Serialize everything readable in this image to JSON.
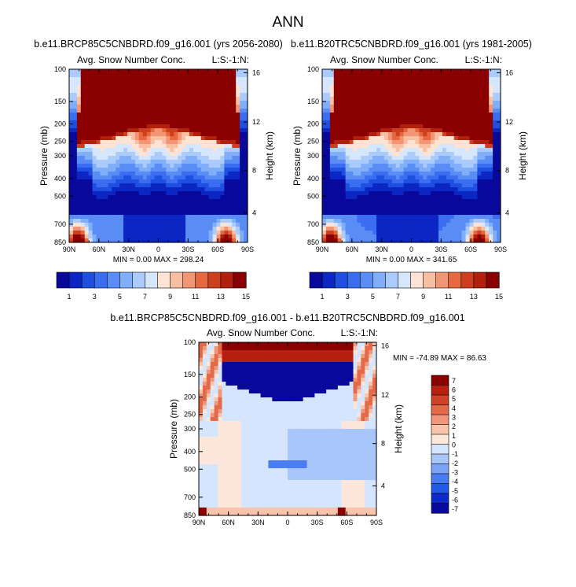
{
  "title": "ANN",
  "colors": {
    "abs": [
      "#08089a",
      "#0c26c4",
      "#1e4fe0",
      "#3a6df0",
      "#5a8cf5",
      "#80aef8",
      "#aacbfb",
      "#d6e6fd",
      "#fde3d4",
      "#f9bfa3",
      "#f29574",
      "#e5683f",
      "#cd3f1e",
      "#b1200c",
      "#8b0000"
    ],
    "diff": [
      "#08089a",
      "#0c2bc8",
      "#2458e6",
      "#4a7cf3",
      "#7aa3f8",
      "#a9c6fb",
      "#d5e5fd",
      "#fde6da",
      "#f8c4ab",
      "#f0977b",
      "#e3694b",
      "#cf4129",
      "#b7200f",
      "#8b0000"
    ]
  },
  "chart_data": [
    {
      "type": "heatmap",
      "title": "b.e11.BRCP85C5CNBDRD.f09_g16.001 (yrs 2056-2080)",
      "subtitle_left": "Avg. Snow Number Conc.",
      "subtitle_right": "L:S:-1:N:",
      "xlabel": "",
      "ylabel": "Pressure (mb)",
      "y2label": "Height (km)",
      "xticks": [
        "90N",
        "60N",
        "30N",
        "0",
        "30S",
        "60S",
        "90S"
      ],
      "yticks": [
        "100",
        "150",
        "200",
        "250",
        "300",
        "400",
        "500",
        "700",
        "850"
      ],
      "y2ticks": [
        "16",
        "12",
        "8",
        "4"
      ],
      "min_label": "MIN =",
      "min_value": "0.00",
      "max_label": "MAX =",
      "max_value": "298.24",
      "colorbar_labels": [
        "1",
        "3",
        "5",
        "7",
        "9",
        "11",
        "13",
        "15"
      ]
    },
    {
      "type": "heatmap",
      "title": "b.e11.B20TRC5CNBDRD.f09_g16.001 (yrs 1981-2005)",
      "subtitle_left": "Avg. Snow Number Conc.",
      "subtitle_right": "L:S:-1:N:",
      "xlabel": "",
      "ylabel": "Pressure (mb)",
      "y2label": "Height (km)",
      "xticks": [
        "90N",
        "60N",
        "30N",
        "0",
        "30S",
        "60S",
        "90S"
      ],
      "yticks": [
        "100",
        "150",
        "200",
        "250",
        "300",
        "400",
        "500",
        "700",
        "850"
      ],
      "y2ticks": [
        "16",
        "12",
        "8",
        "4"
      ],
      "min_label": "MIN =",
      "min_value": "0.00",
      "max_label": "MAX =",
      "max_value": "341.65",
      "colorbar_labels": [
        "1",
        "3",
        "5",
        "7",
        "9",
        "11",
        "13",
        "15"
      ]
    },
    {
      "type": "heatmap",
      "title": "b.e11.BRCP85C5CNBDRD.f09_g16.001 - b.e11.B20TRC5CNBDRD.f09_g16.001",
      "subtitle_left": "Avg. Snow Number Conc.",
      "subtitle_right": "L:S:-1:N:",
      "xlabel": "",
      "ylabel": "Pressure (mb)",
      "y2label": "Height (km)",
      "xticks": [
        "90N",
        "60N",
        "30N",
        "0",
        "30S",
        "60S",
        "90S"
      ],
      "yticks": [
        "100",
        "150",
        "200",
        "250",
        "300",
        "400",
        "500",
        "700",
        "850"
      ],
      "y2ticks": [
        "16",
        "12",
        "8",
        "4"
      ],
      "min_label": "MIN =",
      "min_value": "-74.89",
      "max_label": "MAX =",
      "max_value": "86.63",
      "colorbar_labels": [
        "7",
        "6",
        "5",
        "4",
        "3",
        "2",
        "1",
        "0",
        "-1",
        "-2",
        "-3",
        "-4",
        "-5",
        "-6",
        "-7"
      ]
    }
  ]
}
